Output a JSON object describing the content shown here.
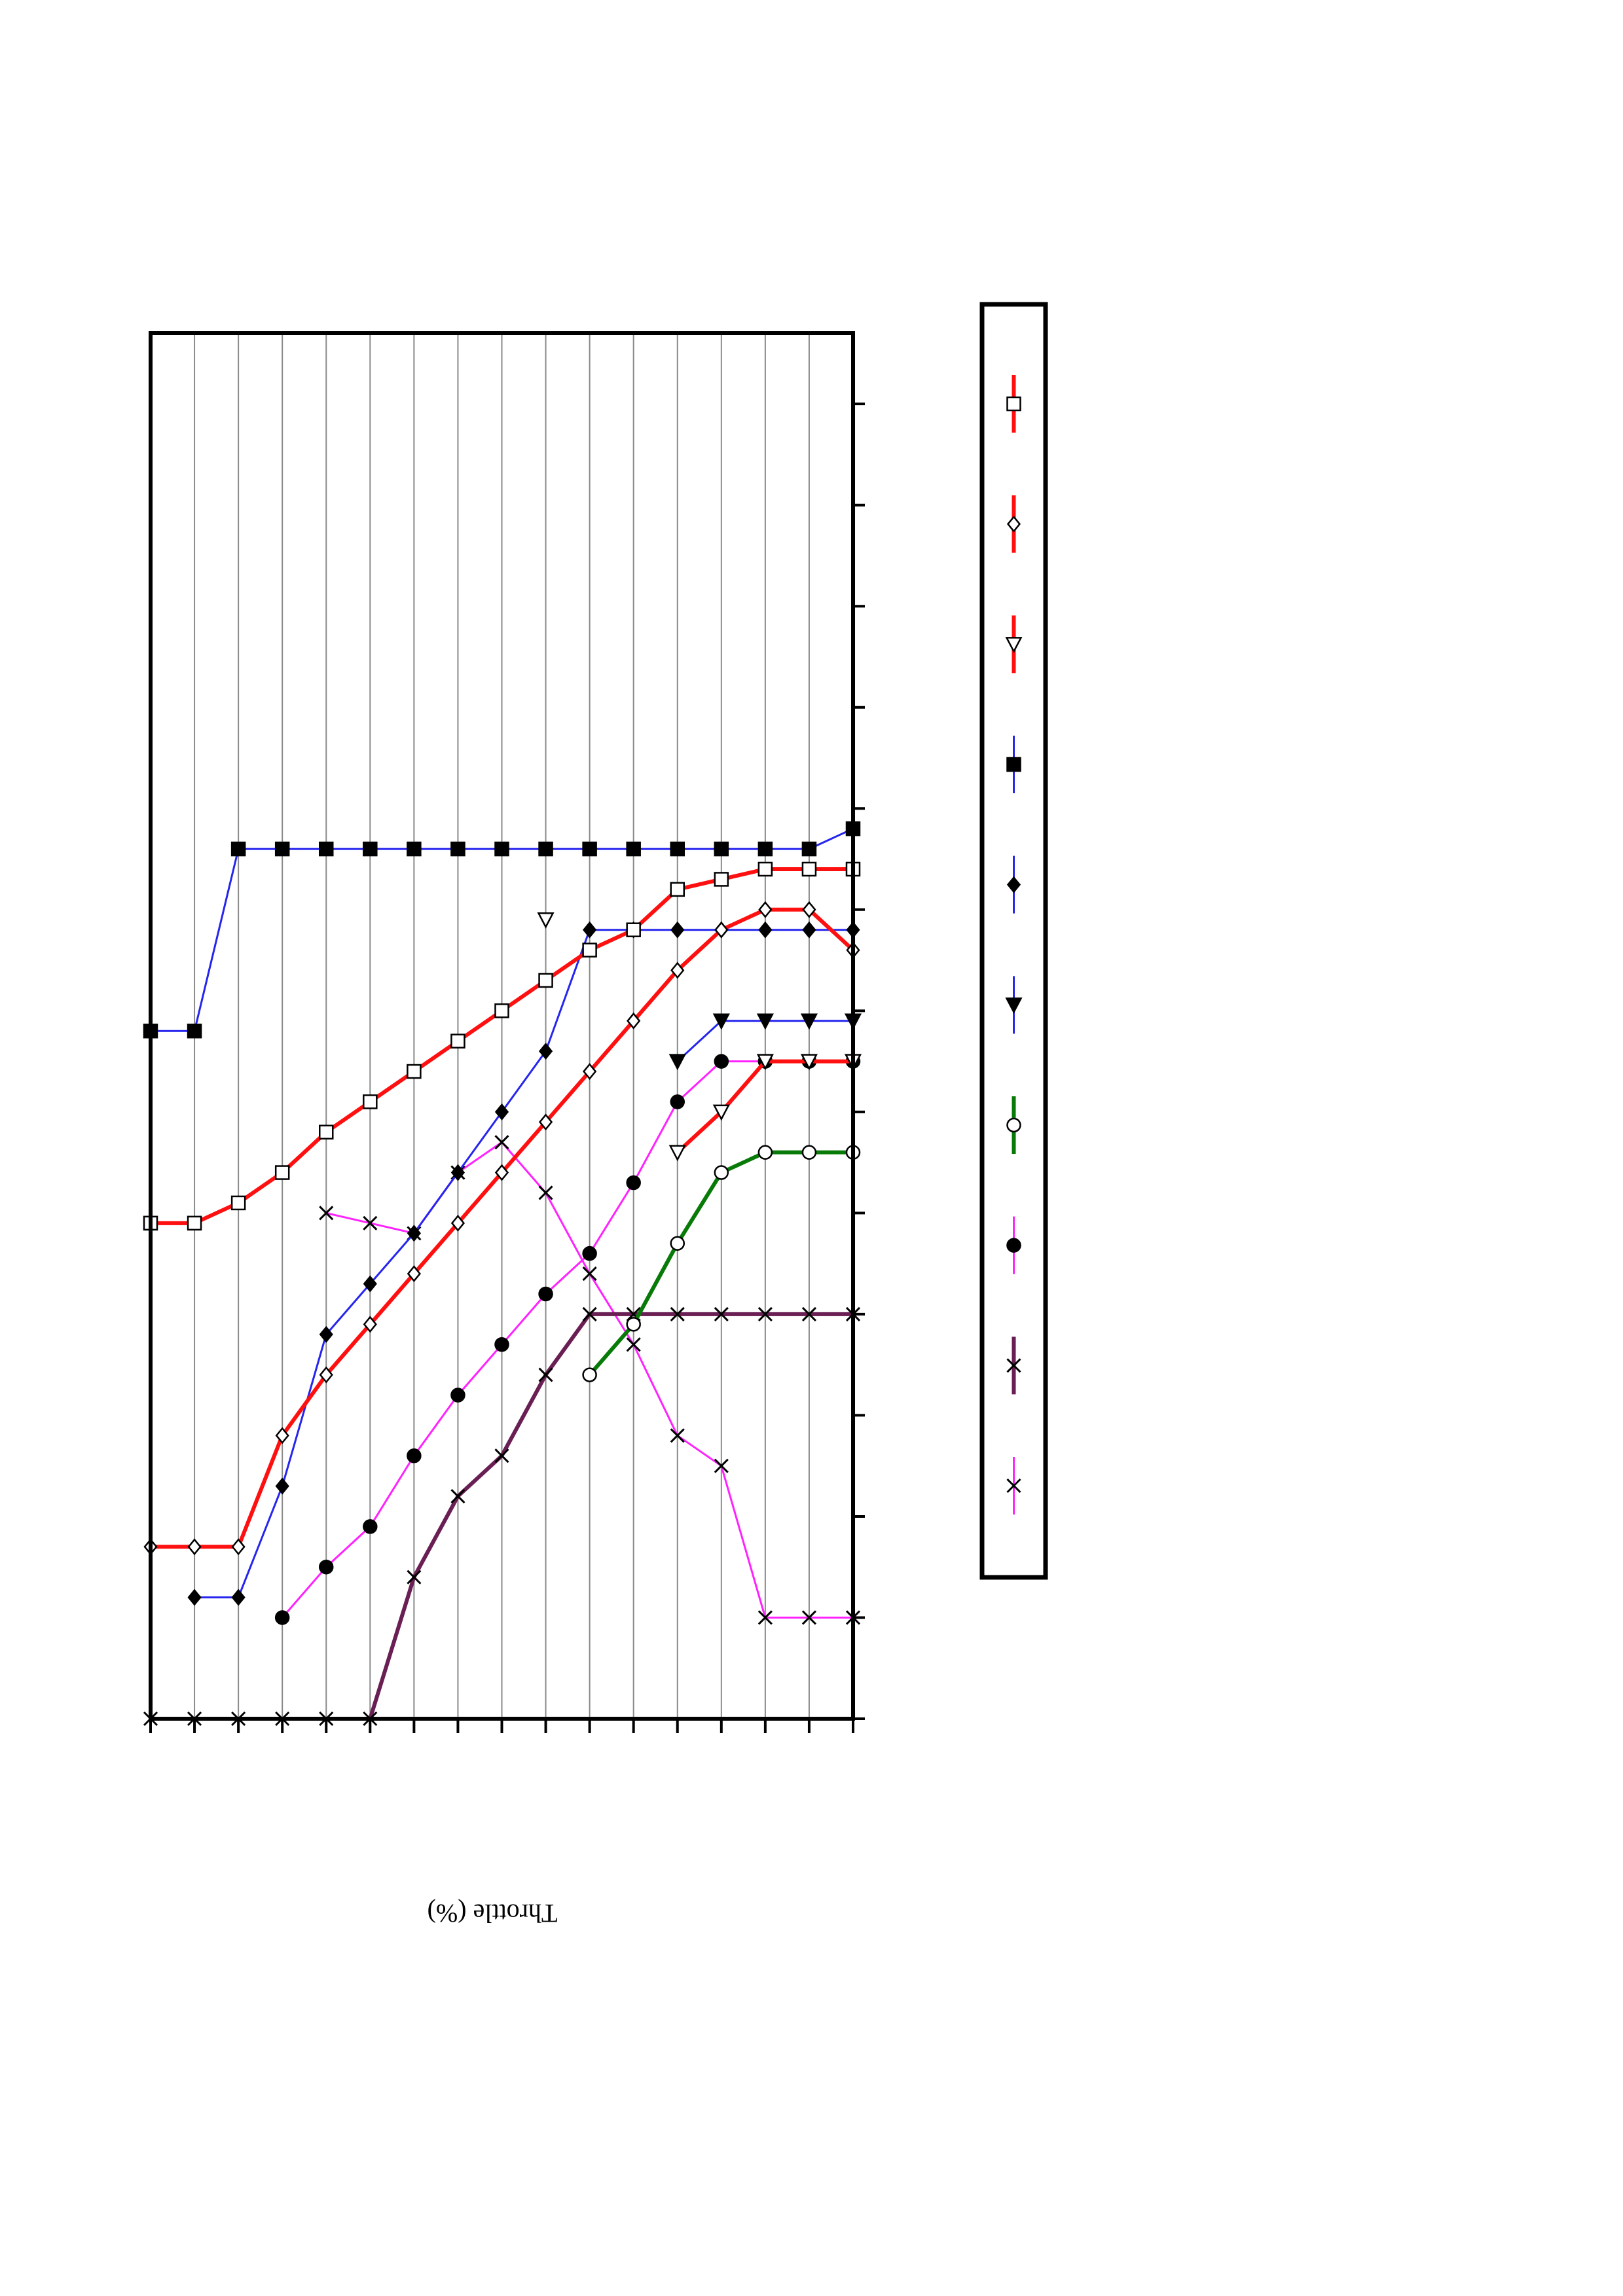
{
  "chart_data": {
    "type": "line",
    "orientation": "rotated-180",
    "xlabel": "Throttle (%)",
    "ylabel": "",
    "title": "",
    "grid": true,
    "legend_placement": "right",
    "x": [
      0,
      1,
      2,
      3,
      4,
      5,
      6,
      7,
      8,
      9,
      10,
      11,
      12,
      13,
      14,
      15,
      16
    ],
    "xlim": [
      0,
      16
    ],
    "ylim": [
      -0.7,
      13
    ],
    "series": [
      {
        "style": {
          "color": "#ff22ff",
          "width": 3,
          "marker": "x",
          "fill": "none"
        },
        "values": [
          12,
          12,
          12,
          10.5,
          10.2,
          9.3,
          8.6,
          7.8,
          7.3,
          7.6,
          8.2,
          8.1,
          8.0,
          null,
          null,
          null,
          null
        ]
      },
      {
        "style": {
          "color": "#6a1f54",
          "width": 6,
          "marker": "x",
          "fill": "none"
        },
        "values": [
          9.0,
          9.0,
          9.0,
          9.0,
          9.0,
          9.0,
          9.0,
          9.6,
          10.4,
          10.8,
          11.6,
          13.0,
          13.0,
          13.0,
          13.0,
          13.0,
          13.0
        ]
      },
      {
        "style": {
          "color": "#ff22ff",
          "width": 3,
          "marker": "circle",
          "fill": "#000"
        },
        "values": [
          6.5,
          6.5,
          6.5,
          6.5,
          6.9,
          7.7,
          8.4,
          8.8,
          9.3,
          9.8,
          10.4,
          11.1,
          11.5,
          12.0,
          null,
          null,
          null
        ]
      },
      {
        "style": {
          "color": "#087a08",
          "width": 6,
          "marker": "circle",
          "fill": "#fff"
        },
        "values": [
          7.4,
          7.4,
          7.4,
          7.6,
          8.3,
          9.1,
          9.6,
          null,
          null,
          null,
          null,
          null,
          null,
          null,
          null,
          null,
          null
        ]
      },
      {
        "style": {
          "color": "#2525ee",
          "width": 3,
          "marker": "triangle",
          "fill": "#000"
        },
        "values": [
          6.1,
          6.1,
          6.1,
          6.1,
          6.5,
          null,
          null,
          null,
          null,
          null,
          null,
          null,
          null,
          null,
          null,
          null,
          null
        ]
      },
      {
        "style": {
          "color": "#2525ee",
          "width": 3,
          "marker": "diamond",
          "fill": "#000"
        },
        "values": [
          5.2,
          5.2,
          5.2,
          5.2,
          5.2,
          5.2,
          5.2,
          6.4,
          7.0,
          7.6,
          8.2,
          8.7,
          9.2,
          10.7,
          11.8,
          11.8,
          null
        ]
      },
      {
        "style": {
          "color": "#2525ee",
          "width": 3,
          "marker": "square",
          "fill": "#000"
        },
        "values": [
          4.2,
          4.4,
          4.4,
          4.4,
          4.4,
          4.4,
          4.4,
          4.4,
          4.4,
          4.4,
          4.4,
          4.4,
          4.4,
          4.4,
          4.4,
          6.2,
          6.2
        ]
      },
      {
        "style": {
          "color": "#ff1010",
          "width": 6,
          "marker": "triangle",
          "fill": "#fff"
        },
        "values": [
          6.5,
          6.5,
          6.5,
          7.0,
          7.4,
          null,
          null,
          5.1,
          null,
          null,
          null,
          null,
          null,
          null,
          null,
          null,
          null
        ]
      },
      {
        "style": {
          "color": "#ff1010",
          "width": 6,
          "marker": "diamond",
          "fill": "#fff"
        },
        "values": [
          5.4,
          5.0,
          5.0,
          5.2,
          5.6,
          6.1,
          6.6,
          7.1,
          7.6,
          8.1,
          8.6,
          9.1,
          9.6,
          10.2,
          11.3,
          11.3,
          11.3
        ]
      },
      {
        "style": {
          "color": "#ff1010",
          "width": 6,
          "marker": "square",
          "fill": "#fff"
        },
        "values": [
          4.6,
          4.6,
          4.6,
          4.7,
          4.8,
          5.2,
          5.4,
          5.7,
          6.0,
          6.3,
          6.6,
          6.9,
          7.2,
          7.6,
          7.9,
          8.1,
          8.1
        ]
      }
    ]
  }
}
